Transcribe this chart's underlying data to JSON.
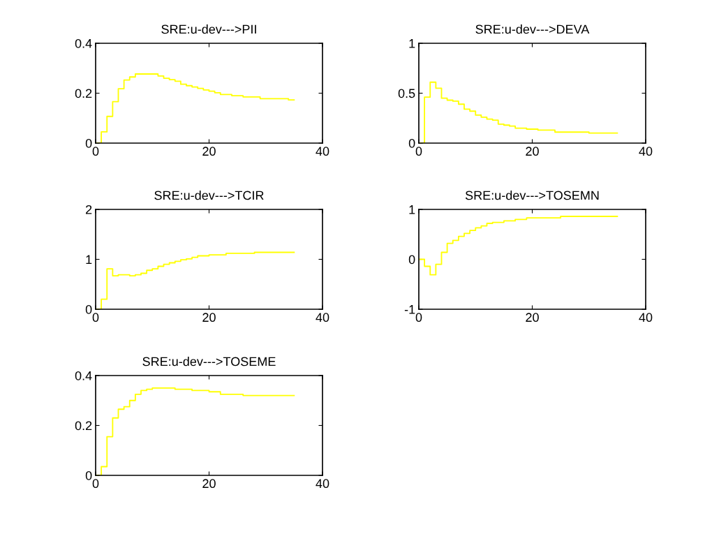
{
  "chart_data": [
    {
      "type": "step",
      "title": "SRE:u-dev--->PII",
      "x": [
        0,
        1,
        2,
        3,
        4,
        5,
        6,
        7,
        8,
        9,
        10,
        11,
        12,
        13,
        14,
        15,
        16,
        17,
        18,
        19,
        20,
        21,
        22,
        23,
        24,
        25,
        26,
        27,
        28,
        29,
        30,
        31,
        32,
        33,
        34,
        35
      ],
      "series": [
        {
          "color": "#ffff00",
          "values": [
            0,
            0.045,
            0.107,
            0.166,
            0.218,
            0.253,
            0.265,
            0.277,
            0.277,
            0.277,
            0.277,
            0.269,
            0.26,
            0.254,
            0.248,
            0.236,
            0.23,
            0.225,
            0.219,
            0.213,
            0.208,
            0.202,
            0.195,
            0.195,
            0.19,
            0.19,
            0.185,
            0.185,
            0.185,
            0.178,
            0.178,
            0.178,
            0.178,
            0.178,
            0.173,
            0.173
          ]
        }
      ],
      "xlim": [
        0,
        40
      ],
      "xticks": [
        0,
        20,
        40
      ],
      "ylim": [
        0,
        0.4
      ],
      "yticks": [
        0,
        0.2,
        0.4
      ],
      "grid": false,
      "legend": false
    },
    {
      "type": "step",
      "title": "SRE:u-dev--->DEVA",
      "x": [
        0,
        1,
        2,
        3,
        4,
        5,
        6,
        7,
        8,
        9,
        10,
        11,
        12,
        13,
        14,
        15,
        16,
        17,
        18,
        19,
        20,
        21,
        22,
        23,
        24,
        25,
        26,
        27,
        28,
        29,
        30,
        31,
        32,
        33,
        34,
        35
      ],
      "series": [
        {
          "color": "#ffff00",
          "values": [
            0,
            0.46,
            0.61,
            0.55,
            0.45,
            0.43,
            0.42,
            0.39,
            0.34,
            0.32,
            0.28,
            0.26,
            0.24,
            0.23,
            0.19,
            0.18,
            0.17,
            0.15,
            0.15,
            0.14,
            0.14,
            0.13,
            0.13,
            0.13,
            0.11,
            0.11,
            0.11,
            0.11,
            0.11,
            0.11,
            0.1,
            0.1,
            0.1,
            0.1,
            0.1,
            0.1
          ]
        }
      ],
      "xlim": [
        0,
        40
      ],
      "xticks": [
        0,
        20,
        40
      ],
      "ylim": [
        0,
        1
      ],
      "yticks": [
        0,
        0.5,
        1
      ],
      "grid": false,
      "legend": false
    },
    {
      "type": "step",
      "title": "SRE:u-dev--->TCIR",
      "x": [
        0,
        1,
        2,
        3,
        4,
        5,
        6,
        7,
        8,
        9,
        10,
        11,
        12,
        13,
        14,
        15,
        16,
        17,
        18,
        19,
        20,
        21,
        22,
        23,
        24,
        25,
        26,
        27,
        28,
        29,
        30,
        31,
        32,
        33,
        34,
        35
      ],
      "series": [
        {
          "color": "#ffff00",
          "values": [
            0,
            0.2,
            0.81,
            0.67,
            0.69,
            0.69,
            0.67,
            0.69,
            0.72,
            0.78,
            0.81,
            0.86,
            0.9,
            0.93,
            0.96,
            0.99,
            1.01,
            1.04,
            1.07,
            1.07,
            1.09,
            1.09,
            1.09,
            1.12,
            1.12,
            1.12,
            1.12,
            1.12,
            1.14,
            1.14,
            1.14,
            1.14,
            1.14,
            1.14,
            1.14,
            1.14
          ]
        }
      ],
      "xlim": [
        0,
        40
      ],
      "xticks": [
        0,
        20,
        40
      ],
      "ylim": [
        0,
        2
      ],
      "yticks": [
        0,
        1,
        2
      ],
      "grid": false,
      "legend": false
    },
    {
      "type": "step",
      "title": "SRE:u-dev--->TOSEMN",
      "x": [
        0,
        1,
        2,
        3,
        4,
        5,
        6,
        7,
        8,
        9,
        10,
        11,
        12,
        13,
        14,
        15,
        16,
        17,
        18,
        19,
        20,
        21,
        22,
        23,
        24,
        25,
        26,
        27,
        28,
        29,
        30,
        31,
        32,
        33,
        34,
        35
      ],
      "series": [
        {
          "color": "#ffff00",
          "values": [
            0,
            -0.14,
            -0.31,
            -0.1,
            0.14,
            0.32,
            0.38,
            0.46,
            0.52,
            0.58,
            0.63,
            0.67,
            0.72,
            0.74,
            0.74,
            0.77,
            0.77,
            0.8,
            0.8,
            0.83,
            0.83,
            0.83,
            0.83,
            0.83,
            0.83,
            0.86,
            0.86,
            0.86,
            0.86,
            0.86,
            0.86,
            0.86,
            0.86,
            0.86,
            0.86,
            0.86
          ]
        }
      ],
      "xlim": [
        0,
        40
      ],
      "xticks": [
        0,
        20,
        40
      ],
      "ylim": [
        -1,
        1
      ],
      "yticks": [
        -1,
        0,
        1
      ],
      "grid": false,
      "legend": false
    },
    {
      "type": "step",
      "title": "SRE:u-dev--->TOSEME",
      "x": [
        0,
        1,
        2,
        3,
        4,
        5,
        6,
        7,
        8,
        9,
        10,
        11,
        12,
        13,
        14,
        15,
        16,
        17,
        18,
        19,
        20,
        21,
        22,
        23,
        24,
        25,
        26,
        27,
        28,
        29,
        30,
        31,
        32,
        33,
        34,
        35
      ],
      "series": [
        {
          "color": "#ffff00",
          "values": [
            0,
            0.035,
            0.155,
            0.23,
            0.265,
            0.275,
            0.3,
            0.325,
            0.34,
            0.345,
            0.35,
            0.35,
            0.35,
            0.35,
            0.345,
            0.345,
            0.345,
            0.34,
            0.34,
            0.34,
            0.335,
            0.335,
            0.325,
            0.325,
            0.325,
            0.325,
            0.32,
            0.32,
            0.32,
            0.32,
            0.32,
            0.32,
            0.32,
            0.32,
            0.32,
            0.32
          ]
        }
      ],
      "xlim": [
        0,
        40
      ],
      "xticks": [
        0,
        20,
        40
      ],
      "ylim": [
        0,
        0.4
      ],
      "yticks": [
        0,
        0.2,
        0.4
      ],
      "grid": false,
      "legend": false
    }
  ]
}
